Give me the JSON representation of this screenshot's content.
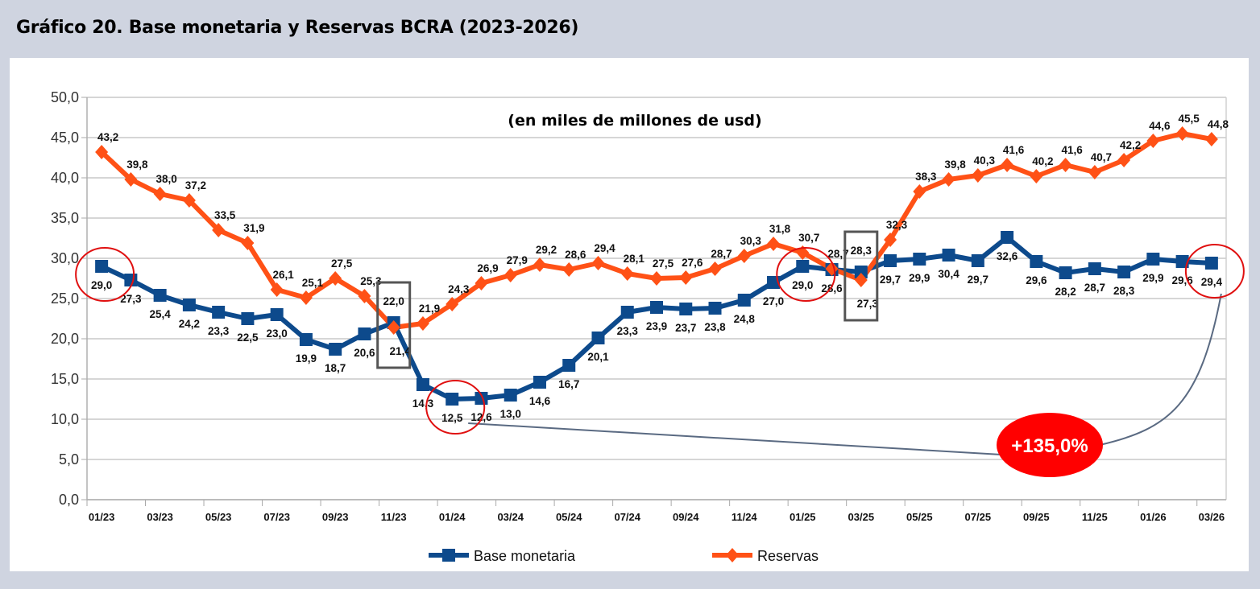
{
  "header": {
    "title": "Gráfico 20. Base monetaria y Reservas BCRA (2023-2026)"
  },
  "chart_data": {
    "type": "line",
    "title": "Gráfico 20. Base monetaria y Reservas BCRA (2023-2026)",
    "subtitle": "(en miles de millones de usd)",
    "xlabel": "",
    "ylabel": "",
    "ylim": [
      0,
      50
    ],
    "yticks": [
      "0,0",
      "5,0",
      "10,0",
      "15,0",
      "20,0",
      "25,0",
      "30,0",
      "35,0",
      "40,0",
      "45,0",
      "50,0"
    ],
    "grid": true,
    "legend_position": "bottom",
    "x": [
      "01/23",
      "02/23",
      "03/23",
      "04/23",
      "05/23",
      "06/23",
      "07/23",
      "08/23",
      "09/23",
      "10/23",
      "11/23",
      "12/23",
      "01/24",
      "02/24",
      "03/24",
      "04/24",
      "05/24",
      "06/24",
      "07/24",
      "08/24",
      "09/24",
      "10/24",
      "11/24",
      "12/24",
      "01/25",
      "02/25",
      "03/25",
      "04/25",
      "05/25",
      "06/25",
      "07/25",
      "08/25",
      "09/25",
      "10/25",
      "11/25",
      "12/25",
      "01/26",
      "02/26",
      "03/26"
    ],
    "xtick_labels": [
      "01/23",
      "03/23",
      "05/23",
      "07/23",
      "09/23",
      "11/23",
      "01/24",
      "03/24",
      "05/24",
      "07/24",
      "09/24",
      "11/24",
      "01/25",
      "03/25",
      "05/25",
      "07/25",
      "09/25",
      "11/25",
      "01/26",
      "03/26"
    ],
    "series": [
      {
        "name": "Base monetaria",
        "color": "#0d4a8c",
        "marker": "square",
        "values": [
          29.0,
          27.3,
          25.4,
          24.2,
          23.3,
          22.5,
          23.0,
          19.9,
          18.7,
          20.6,
          22.0,
          14.3,
          12.5,
          12.6,
          13.0,
          14.6,
          16.7,
          20.1,
          23.3,
          23.9,
          23.7,
          23.8,
          24.8,
          27.0,
          29.0,
          28.6,
          28.3,
          29.7,
          29.9,
          30.4,
          29.7,
          32.6,
          29.6,
          28.2,
          28.7,
          28.3,
          29.9,
          29.6,
          29.4
        ]
      },
      {
        "name": "Reservas",
        "color": "#ff5116",
        "marker": "diamond",
        "values": [
          43.2,
          39.8,
          38.0,
          37.2,
          33.5,
          31.9,
          26.1,
          25.1,
          27.5,
          25.3,
          21.4,
          21.9,
          24.3,
          26.9,
          27.9,
          29.2,
          28.6,
          29.4,
          28.1,
          27.5,
          27.6,
          28.7,
          30.3,
          31.8,
          30.7,
          28.7,
          27.3,
          32.3,
          38.3,
          39.8,
          40.3,
          41.6,
          40.2,
          41.6,
          40.7,
          42.2,
          44.6,
          45.5,
          44.8
        ]
      }
    ],
    "annotations": {
      "highlight_circles": [
        {
          "series": "Base monetaria",
          "x": "01/23"
        },
        {
          "series": "Base monetaria",
          "x": "01/24"
        },
        {
          "series": "Base monetaria",
          "x": "01/25"
        },
        {
          "series": "Base monetaria",
          "x": "03/26"
        }
      ],
      "highlight_boxes": [
        "11/23",
        "03/25"
      ],
      "badge": {
        "text": "+135,0%",
        "from": "01/24",
        "to": "03/26",
        "color": "#ff0000"
      }
    }
  }
}
